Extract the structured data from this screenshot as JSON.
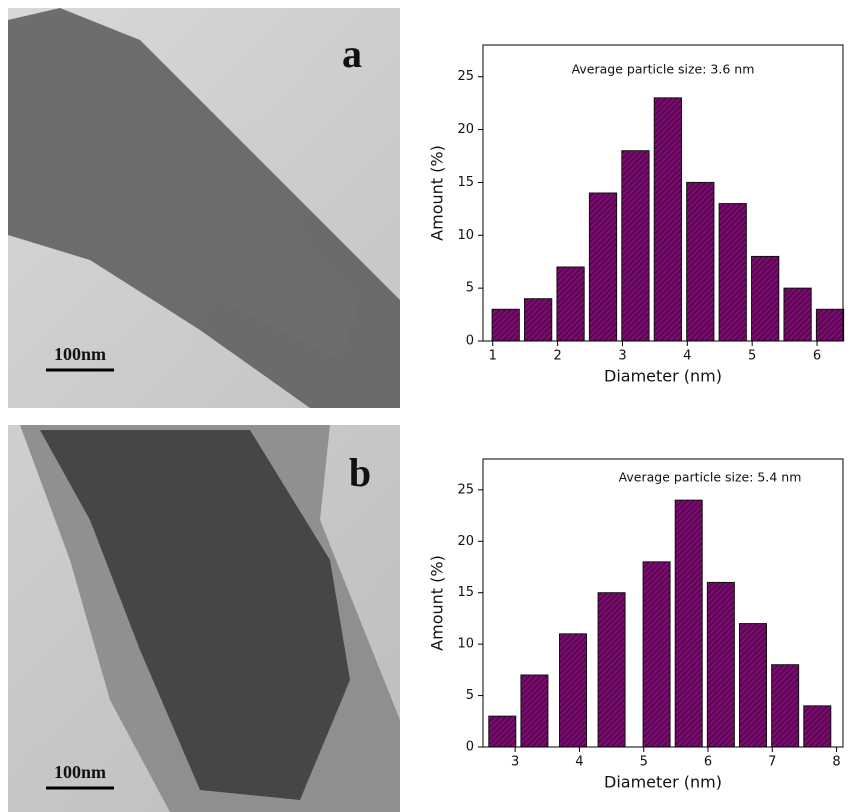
{
  "panels": [
    {
      "label": "a",
      "scale_bar": "100nm"
    },
    {
      "label": "b",
      "scale_bar": "100nm"
    }
  ],
  "chart_data": [
    {
      "type": "bar",
      "annotation": "Average particle size: 3.6 nm",
      "x_label": "Diameter (nm)",
      "y_label": "Amount (%)",
      "x": [
        1.2,
        1.7,
        2.2,
        2.7,
        3.2,
        3.7,
        4.2,
        4.7,
        5.2,
        5.7,
        6.2
      ],
      "values": [
        3,
        4,
        7,
        14,
        18,
        23,
        15,
        13,
        8,
        5,
        3
      ],
      "color": "#7a0b6e",
      "xlim": [
        0.85,
        6.4
      ],
      "xticks": [
        1,
        2,
        3,
        4,
        5,
        6
      ],
      "ylim": [
        0,
        28
      ],
      "yticks": [
        0,
        5,
        10,
        15,
        20,
        25
      ]
    },
    {
      "type": "bar",
      "annotation": "Average particle size: 5.4 nm",
      "x_label": "Diameter (nm)",
      "y_label": "Amount (%)",
      "x": [
        2.8,
        3.3,
        3.9,
        4.5,
        5.2,
        5.7,
        6.2,
        6.7,
        7.2,
        7.7
      ],
      "values": [
        3,
        7,
        11,
        15,
        18,
        24,
        16,
        12,
        8,
        4
      ],
      "color": "#7a0b6e",
      "xlim": [
        2.5,
        8.1
      ],
      "xticks": [
        3,
        4,
        5,
        6,
        7,
        8
      ],
      "ylim": [
        0,
        28
      ],
      "yticks": [
        0,
        5,
        10,
        15,
        20,
        25
      ]
    }
  ]
}
